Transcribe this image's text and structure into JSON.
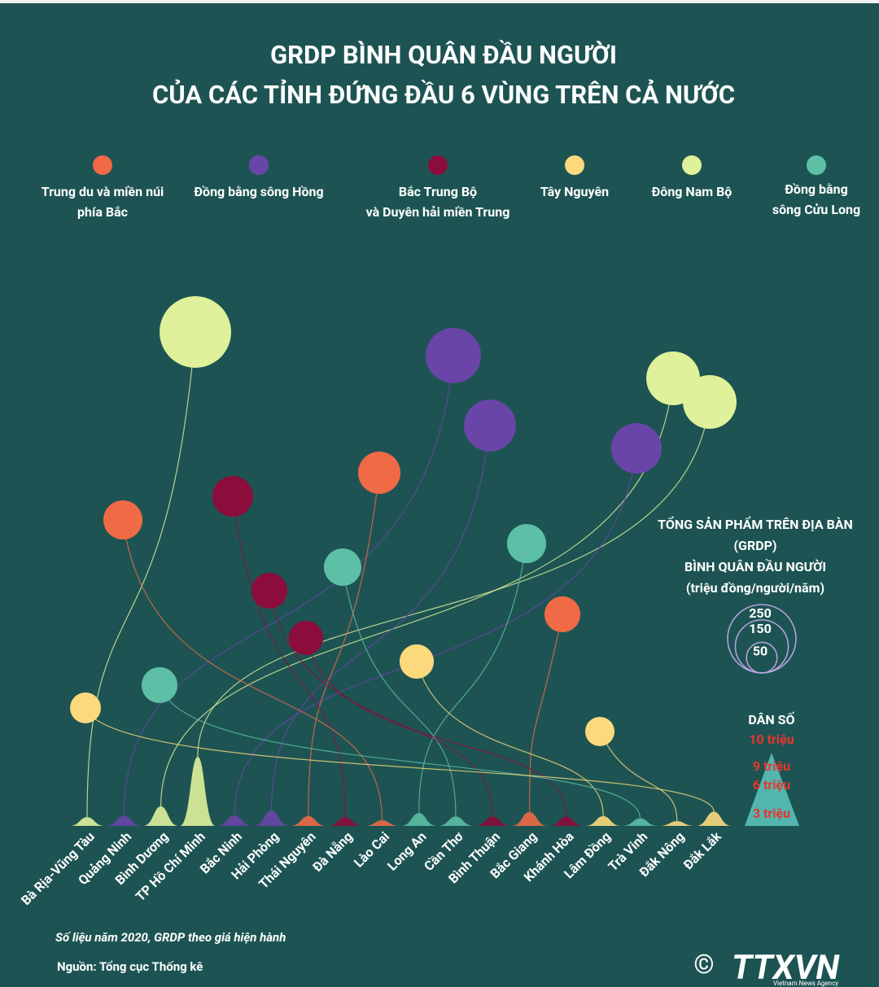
{
  "chart_data": {
    "type": "bubble-arc",
    "title": [
      "GRDP BÌNH QUÂN ĐẦU NGƯỜI",
      "CỦA CÁC TỈNH ĐỨNG ĐẦU 6 VÙNG TRÊN CẢ NƯỚC"
    ],
    "series": [
      {
        "name": [
          "Trung du và miền núi",
          "phía Bắc"
        ],
        "color": "#ef6a45"
      },
      {
        "name": [
          "Đồng bằng sông Hồng"
        ],
        "color": "#6a45a8"
      },
      {
        "name": [
          "Bắc Trung Bộ",
          "và Duyên hải miền Trung"
        ],
        "color": "#8c0c3c"
      },
      {
        "name": [
          "Tây Nguyên"
        ],
        "color": "#fbd97c"
      },
      {
        "name": [
          "Đông Nam Bộ"
        ],
        "color": "#dff19a"
      },
      {
        "name": [
          "Đồng bằng",
          "sông Cửu Long"
        ],
        "color": "#5cbfa6"
      }
    ],
    "provinces": [
      {
        "name": "Bà Rịa-Vũng Tàu",
        "region": 4,
        "grdp": 274,
        "population": 1.17
      },
      {
        "name": "Quảng Ninh",
        "region": 1,
        "grdp": 164,
        "population": 1.34
      },
      {
        "name": "Bình Dương",
        "region": 4,
        "grdp": 154,
        "population": 2.6
      },
      {
        "name": "TP Hồ Chí Minh",
        "region": 4,
        "grdp": 154,
        "population": 9.2
      },
      {
        "name": "Bắc Ninh",
        "region": 1,
        "grdp": 136,
        "population": 1.4
      },
      {
        "name": "Hải Phòng",
        "region": 1,
        "grdp": 145,
        "population": 2.05
      },
      {
        "name": "Thái Nguyên",
        "region": 0,
        "grdp": 96,
        "population": 1.3
      },
      {
        "name": "Đà Nẵng",
        "region": 2,
        "grdp": 89,
        "population": 1.17
      },
      {
        "name": "Lào Cai",
        "region": 0,
        "grdp": 82,
        "population": 0.75
      },
      {
        "name": "Long An",
        "region": 5,
        "grdp": 82,
        "population": 1.7
      },
      {
        "name": "Cần Thơ",
        "region": 5,
        "grdp": 75,
        "population": 1.24
      },
      {
        "name": "Bình Thuận",
        "region": 2,
        "grdp": 69,
        "population": 1.24
      },
      {
        "name": "Bắc Giang",
        "region": 0,
        "grdp": 69,
        "population": 1.84
      },
      {
        "name": "Khánh Hòa",
        "region": 2,
        "grdp": 63,
        "population": 1.23
      },
      {
        "name": "Lâm Đồng",
        "region": 3,
        "grdp": 63,
        "population": 1.3
      },
      {
        "name": "Trà Vinh",
        "region": 5,
        "grdp": 69,
        "population": 1.0
      },
      {
        "name": "Đắk Nông",
        "region": 3,
        "grdp": 46,
        "population": 0.64
      },
      {
        "name": "Đắk Lắk",
        "region": 3,
        "grdp": 51,
        "population": 1.9
      }
    ],
    "size_legend": {
      "title": [
        "TỔNG SẢN PHẨM TRÊN ĐỊA BÀN",
        "(GRDP)",
        "BÌNH QUÂN ĐẦU NGƯỜI",
        "(triệu đồng/người/năm)"
      ],
      "values": [
        250,
        150,
        50
      ]
    },
    "population_legend": {
      "title": "DÂN SỐ",
      "ticks": [
        {
          "value": 10,
          "label": "10 triệu"
        },
        {
          "value": 9,
          "label": "9 triệu"
        },
        {
          "value": 6,
          "label": "6 triệu"
        },
        {
          "value": 3,
          "label": "3 triệu"
        }
      ]
    },
    "note": "Số liệu năm 2020, GRDP theo giá hiện hành",
    "source": "Nguồn: Tổng cục Thống kê",
    "credit": "©",
    "logo": "TTXVN",
    "logo_sub": "Vietnam News Agency"
  }
}
